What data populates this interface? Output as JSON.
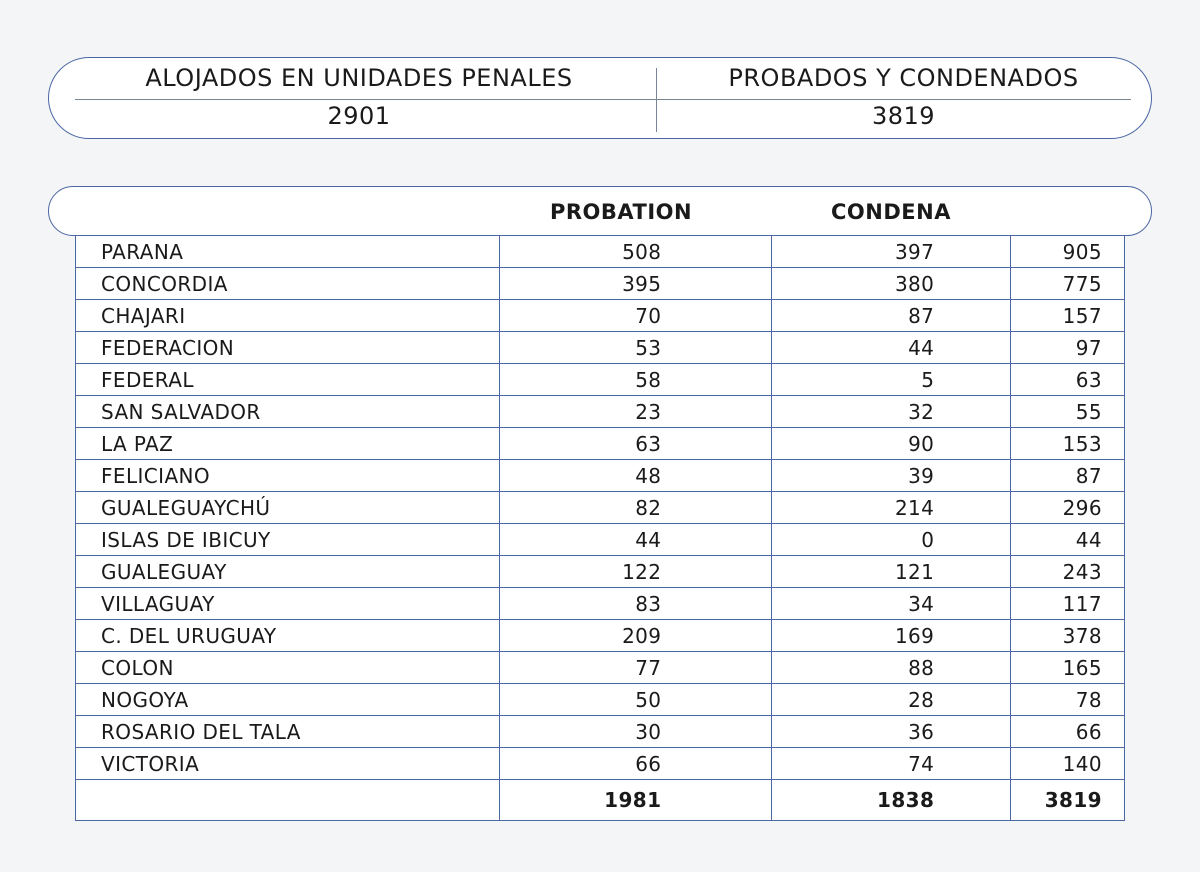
{
  "summary": {
    "headers": [
      "ALOJADOS EN UNIDADES PENALES",
      "PROBADOS Y CONDENADOS"
    ],
    "values": [
      "2901",
      "3819"
    ]
  },
  "table": {
    "columns": [
      "",
      "PROBATION",
      "CONDENA",
      ""
    ],
    "rows": [
      [
        "PARANA",
        "508",
        "397",
        "905"
      ],
      [
        "CONCORDIA",
        "395",
        "380",
        "775"
      ],
      [
        "CHAJARI",
        "70",
        "87",
        "157"
      ],
      [
        "FEDERACION",
        "53",
        "44",
        "97"
      ],
      [
        "FEDERAL",
        "58",
        "5",
        "63"
      ],
      [
        "SAN SALVADOR",
        "23",
        "32",
        "55"
      ],
      [
        "LA PAZ",
        "63",
        "90",
        "153"
      ],
      [
        "FELICIANO",
        "48",
        "39",
        "87"
      ],
      [
        "GUALEGUAYCHÚ",
        "82",
        "214",
        "296"
      ],
      [
        "ISLAS DE IBICUY",
        "44",
        "0",
        "44"
      ],
      [
        "GUALEGUAY",
        "122",
        "121",
        "243"
      ],
      [
        "VILLAGUAY",
        "83",
        "34",
        "117"
      ],
      [
        "C. DEL URUGUAY",
        "209",
        "169",
        "378"
      ],
      [
        "COLON",
        "77",
        "88",
        "165"
      ],
      [
        "NOGOYA",
        "50",
        "28",
        "78"
      ],
      [
        "ROSARIO DEL TALA",
        "30",
        "36",
        "66"
      ],
      [
        "VICTORIA",
        "66",
        "74",
        "140"
      ]
    ],
    "totals": [
      "",
      "1981",
      "1838",
      "3819"
    ]
  },
  "colors": {
    "border": "#4a67a3",
    "background": "#f4f5f7"
  }
}
